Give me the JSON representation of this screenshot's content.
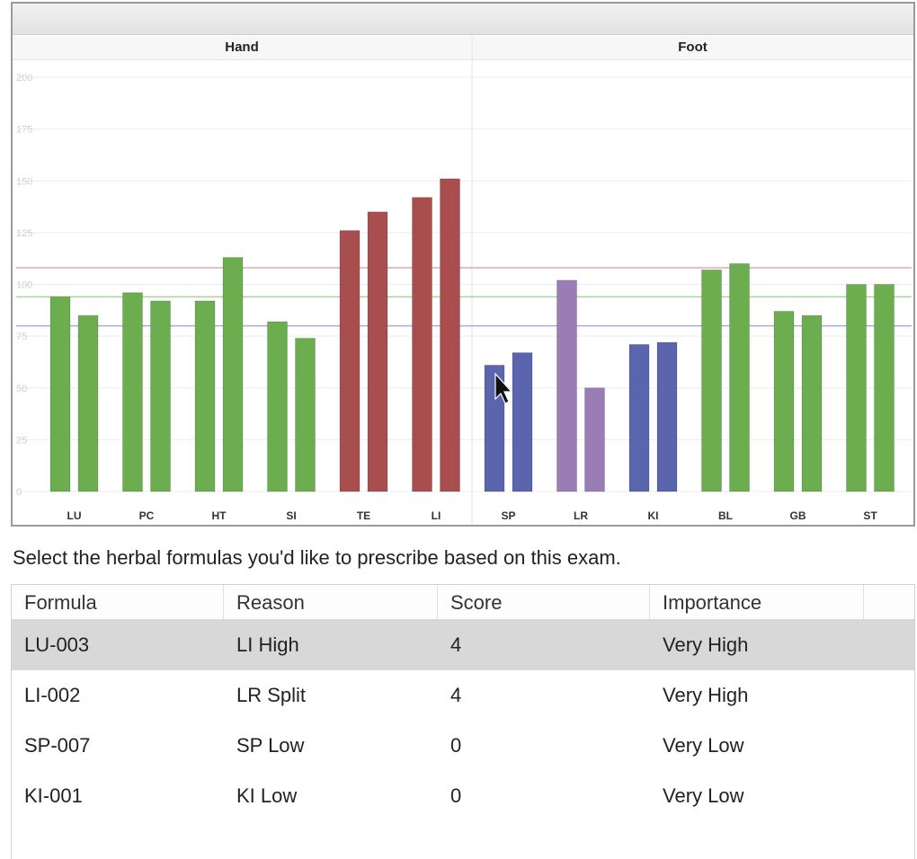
{
  "groups": [
    "Hand",
    "Foot"
  ],
  "chart_data": {
    "type": "bar",
    "categories": [
      "LU",
      "PC",
      "HT",
      "SI",
      "TE",
      "LI",
      "SP",
      "LR",
      "KI",
      "BL",
      "GB",
      "ST"
    ],
    "values": [
      [
        94,
        85
      ],
      [
        96,
        92
      ],
      [
        92,
        113
      ],
      [
        82,
        74
      ],
      [
        126,
        135
      ],
      [
        142,
        151
      ],
      [
        61,
        67
      ],
      [
        102,
        50
      ],
      [
        71,
        72
      ],
      [
        107,
        110
      ],
      [
        87,
        85
      ],
      [
        100,
        100
      ]
    ],
    "bar_colors": [
      [
        "#6cae4f",
        "#6cae4f"
      ],
      [
        "#6cae4f",
        "#6cae4f"
      ],
      [
        "#6cae4f",
        "#6cae4f"
      ],
      [
        "#6cae4f",
        "#6cae4f"
      ],
      [
        "#a94e4e",
        "#a94e4e"
      ],
      [
        "#a94e4e",
        "#a94e4e"
      ],
      [
        "#5a65ad",
        "#5a65ad"
      ],
      [
        "#9a7db5",
        "#9a7db5"
      ],
      [
        "#5a65ad",
        "#5a65ad"
      ],
      [
        "#6cae4f",
        "#6cae4f"
      ],
      [
        "#6cae4f",
        "#6cae4f"
      ],
      [
        "#6cae4f",
        "#6cae4f"
      ]
    ],
    "yticks": [
      0,
      25,
      50,
      75,
      100,
      125,
      150,
      175,
      200
    ],
    "ylim": [
      0,
      200
    ],
    "reference_lines": [
      {
        "value": 108,
        "color": "#e3a9ae"
      },
      {
        "value": 94,
        "color": "#a9d39b"
      },
      {
        "value": 80,
        "color": "#a9acd8"
      }
    ],
    "grid": true
  },
  "instruction": "Select the herbal formulas you'd like to prescribe based on this exam.",
  "table": {
    "headers": [
      "Formula",
      "Reason",
      "Score",
      "Importance"
    ],
    "rows": [
      {
        "formula": "LU-003",
        "reason": "LI High",
        "score": "4",
        "importance": "Very High",
        "selected": true
      },
      {
        "formula": "LI-002",
        "reason": "LR Split",
        "score": "4",
        "importance": "Very High",
        "selected": false
      },
      {
        "formula": "SP-007",
        "reason": "SP Low",
        "score": "0",
        "importance": "Very Low",
        "selected": false
      },
      {
        "formula": "KI-001",
        "reason": "KI Low",
        "score": "0",
        "importance": "Very Low",
        "selected": false
      }
    ]
  }
}
